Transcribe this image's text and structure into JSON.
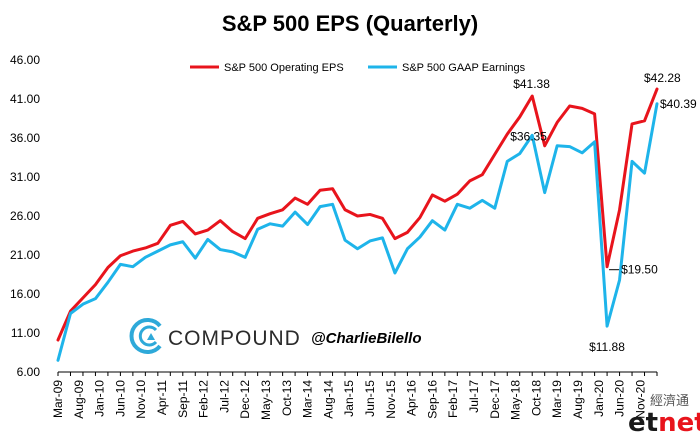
{
  "chart_data": {
    "type": "line",
    "title": "S&P 500 EPS (Quarterly)",
    "xlabel": "",
    "ylabel": "",
    "ylim": [
      6,
      46
    ],
    "yticks": [
      "46.00",
      "41.00",
      "36.00",
      "31.00",
      "26.00",
      "21.00",
      "16.00",
      "11.00",
      "6.00"
    ],
    "ytick_values": [
      46,
      41,
      36,
      31,
      26,
      21,
      16,
      11,
      6
    ],
    "x": [
      "Mar-09",
      "Jun-09",
      "Sep-09",
      "Dec-09",
      "Mar-10",
      "Jun-10",
      "Sep-10",
      "Dec-10",
      "Mar-11",
      "Jun-11",
      "Sep-11",
      "Dec-11",
      "Mar-12",
      "Jun-12",
      "Sep-12",
      "Dec-12",
      "Mar-13",
      "Jun-13",
      "Sep-13",
      "Dec-13",
      "Mar-14",
      "Jun-14",
      "Sep-14",
      "Dec-14",
      "Mar-15",
      "Jun-15",
      "Sep-15",
      "Dec-15",
      "Mar-16",
      "Jun-16",
      "Sep-16",
      "Dec-16",
      "Mar-17",
      "Jun-17",
      "Sep-17",
      "Dec-17",
      "Mar-18",
      "Jun-18",
      "Sep-18",
      "Dec-18",
      "Mar-19",
      "Jun-19",
      "Sep-19",
      "Dec-19",
      "Mar-20",
      "Jun-20",
      "Sep-20",
      "Dec-20",
      "Mar-21"
    ],
    "xtick_labels": [
      "Mar-09",
      "Aug-09",
      "Jan-10",
      "Jun-10",
      "Nov-10",
      "Apr-11",
      "Sep-11",
      "Feb-12",
      "Jul-12",
      "Dec-12",
      "May-13",
      "Oct-13",
      "Mar-14",
      "Aug-14",
      "Jan-15",
      "Jun-15",
      "Nov-15",
      "Apr-16",
      "Sep-16",
      "Feb-17",
      "Jul-17",
      "Dec-17",
      "May-18",
      "Oct-18",
      "Mar-19",
      "Aug-19",
      "Jan-20",
      "Jun-20",
      "Nov-20"
    ],
    "series": [
      {
        "name": "S&P 500 Operating EPS",
        "color": "#e8141c",
        "values": [
          10.1,
          13.8,
          15.5,
          17.2,
          19.4,
          20.9,
          21.5,
          21.9,
          22.5,
          24.8,
          25.3,
          23.7,
          24.2,
          25.4,
          24.0,
          23.1,
          25.7,
          26.3,
          26.8,
          28.3,
          27.5,
          29.3,
          29.5,
          26.8,
          26.0,
          26.2,
          25.7,
          23.1,
          23.9,
          25.8,
          28.7,
          27.9,
          28.8,
          30.5,
          31.3,
          33.9,
          36.5,
          38.7,
          41.38,
          35.0,
          38.0,
          40.1,
          39.8,
          39.1,
          19.5,
          26.8,
          37.8,
          38.2,
          42.28
        ]
      },
      {
        "name": "S&P 500 GAAP Earnings",
        "color": "#1eb4ea",
        "values": [
          7.5,
          13.5,
          14.7,
          15.4,
          17.5,
          19.8,
          19.5,
          20.7,
          21.5,
          22.3,
          22.7,
          20.6,
          23.0,
          21.7,
          21.4,
          20.7,
          24.3,
          25.0,
          24.7,
          26.5,
          24.9,
          27.2,
          27.5,
          22.9,
          21.8,
          22.8,
          23.2,
          18.7,
          21.8,
          23.3,
          25.4,
          24.2,
          27.5,
          27.0,
          28.0,
          27.0,
          33.0,
          34.0,
          36.35,
          29.0,
          35.0,
          34.9,
          34.1,
          35.5,
          11.88,
          17.8,
          33.0,
          31.5,
          40.39
        ]
      }
    ],
    "annotations": [
      {
        "text": "$41.38",
        "series": 0,
        "index": 38
      },
      {
        "text": "$36.35",
        "series": 1,
        "index": 38
      },
      {
        "text": "$19.50",
        "series": 0,
        "index": 44
      },
      {
        "text": "$11.88",
        "series": 1,
        "index": 44
      },
      {
        "text": "$42.28",
        "series": 0,
        "index": 48
      },
      {
        "text": "$40.39",
        "series": 1,
        "index": 48
      }
    ],
    "legend_placement": "top-center",
    "grid": false
  },
  "brand": {
    "name": "COMPOUND",
    "handle": "@CharlieBilello",
    "accent": "#2ea9d9"
  },
  "watermark": {
    "cn_text": "經濟通",
    "et_prefix": "et",
    "et_suffix": "net",
    "et_color": "#1a1a1a",
    "net_color": "#e8141c"
  }
}
